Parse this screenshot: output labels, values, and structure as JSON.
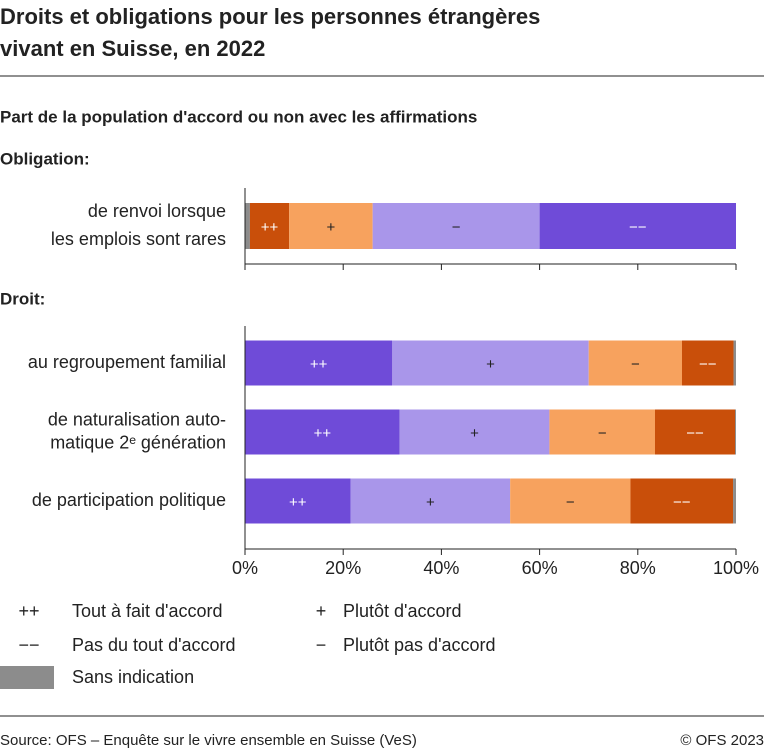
{
  "title": "Droits et obligations pour les personnes étrangères\nvivant en Suisse, en 2022",
  "subtitle": "Part de la population d'accord ou non avec les affirmations",
  "chart_data": [
    {
      "type": "bar",
      "orientation": "horizontal",
      "stacked": true,
      "title": "Obligation:",
      "categories": [
        "de renvoi lorsque\nles emplois sont rares"
      ],
      "series": [
        {
          "color": "#8c8c8c",
          "values": [
            1
          ]
        },
        {
          "symbol": "++",
          "color": "#c94f0a",
          "values": [
            8
          ]
        },
        {
          "symbol": "+",
          "color": "#f7a25e",
          "values": [
            17
          ]
        },
        {
          "symbol": "−",
          "color": "#a996ea",
          "values": [
            34
          ]
        },
        {
          "symbol": "−−",
          "color": "#6f4bd8",
          "values": [
            40
          ]
        }
      ],
      "xlim": [
        0,
        100
      ],
      "xticks": [
        0,
        20,
        40,
        60,
        80,
        100
      ]
    },
    {
      "type": "bar",
      "orientation": "horizontal",
      "stacked": true,
      "title": "Droit:",
      "categories": [
        "au regroupement familial",
        "de naturalisation auto-\nmatique 2ᵉ génération",
        "de participation politique"
      ],
      "series": [
        {
          "name": "Tout à fait d'accord",
          "symbol": "++",
          "color": "#6f4bd8",
          "values": [
            30,
            31.5,
            21.5
          ]
        },
        {
          "name": "Plutôt d'accord",
          "symbol": "+",
          "color": "#a996ea",
          "values": [
            40,
            30.5,
            32.5
          ]
        },
        {
          "name": "Plutôt pas d'accord",
          "symbol": "−",
          "color": "#f7a25e",
          "values": [
            19,
            21.5,
            24.5
          ]
        },
        {
          "name": "Pas du tout d'accord",
          "symbol": "−−",
          "color": "#c94f0a",
          "values": [
            10.5,
            16.3,
            20.9
          ]
        },
        {
          "name": "Sans indication",
          "color": "#8c8c8c",
          "values": [
            0.5,
            0.2,
            0.6
          ]
        }
      ],
      "xlim": [
        0,
        100
      ],
      "xticks": [
        {
          "value": 0,
          "label": "0%"
        },
        {
          "value": 20,
          "label": "20%"
        },
        {
          "value": 40,
          "label": "40%"
        },
        {
          "value": 60,
          "label": "60%"
        },
        {
          "value": 80,
          "label": "80%"
        },
        {
          "value": 100,
          "label": "100%"
        }
      ]
    }
  ],
  "source": "Source: OFS – Enquête sur le vivre ensemble en Suisse (VeS)",
  "copyright": "© OFS 2023"
}
